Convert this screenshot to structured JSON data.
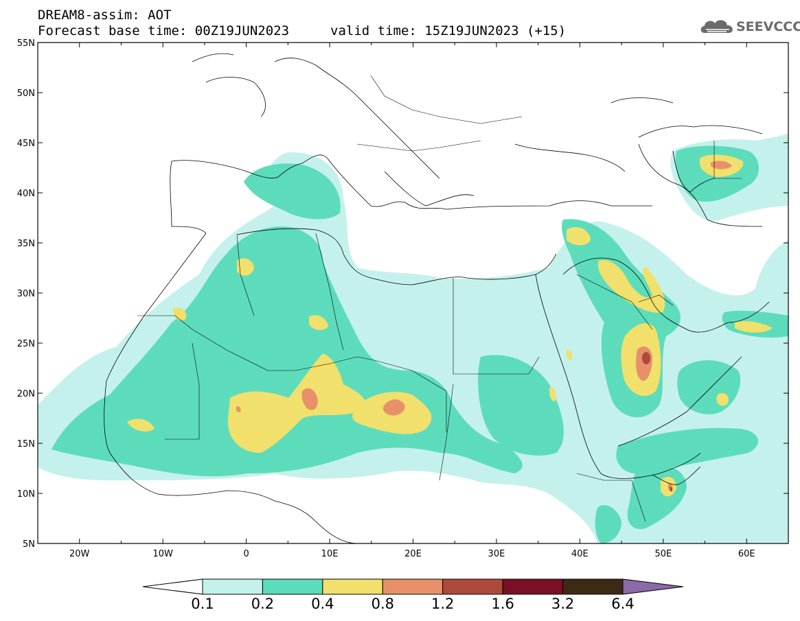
{
  "header": {
    "line1": "DREAM8-assim: AOT",
    "line2_left": "Forecast base time: 00Z19JUN2023",
    "line2_right": "valid time: 15Z19JUN2023 (+15)"
  },
  "logo": {
    "text": "SEEVCCC",
    "icon": "cloud-icon"
  },
  "map": {
    "lon_range": [
      -25,
      65
    ],
    "lat_range": [
      5,
      55
    ],
    "lat_ticks": [
      {
        "value": 55,
        "label": "55N"
      },
      {
        "value": 50,
        "label": "50N"
      },
      {
        "value": 45,
        "label": "45N"
      },
      {
        "value": 40,
        "label": "40N"
      },
      {
        "value": 35,
        "label": "35N"
      },
      {
        "value": 30,
        "label": "30N"
      },
      {
        "value": 25,
        "label": "25N"
      },
      {
        "value": 20,
        "label": "20N"
      },
      {
        "value": 15,
        "label": "15N"
      },
      {
        "value": 10,
        "label": "10N"
      },
      {
        "value": 5,
        "label": "5N"
      }
    ],
    "lon_ticks": [
      {
        "value": -20,
        "label": "20W"
      },
      {
        "value": -10,
        "label": "10W"
      },
      {
        "value": 0,
        "label": "0"
      },
      {
        "value": 10,
        "label": "10E"
      },
      {
        "value": 20,
        "label": "20E"
      },
      {
        "value": 30,
        "label": "30E"
      },
      {
        "value": 40,
        "label": "40E"
      },
      {
        "value": 50,
        "label": "50E"
      },
      {
        "value": 60,
        "label": "60E"
      }
    ]
  },
  "colorbar": {
    "labels": [
      "0.1",
      "0.2",
      "0.4",
      "0.8",
      "1.2",
      "1.6",
      "3.2",
      "6.4"
    ],
    "colors": {
      "under": "#ffffff",
      "bins": [
        "#c4f1ec",
        "#5ddcbb",
        "#f1e06b",
        "#e8906a",
        "#ac4b3b",
        "#7a0f25",
        "#3c2a14"
      ],
      "over": "#8a6aa8"
    }
  }
}
